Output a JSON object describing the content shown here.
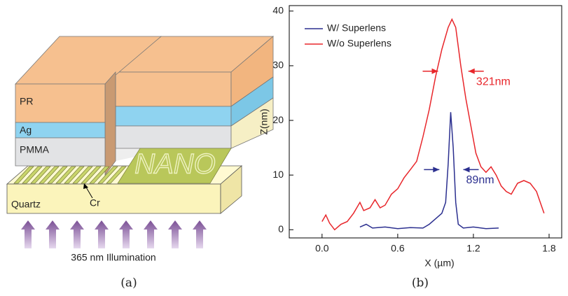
{
  "diagram": {
    "labels": {
      "pr": "PR",
      "ag": "Ag",
      "pmma": "PMMA",
      "quartz": "Quartz",
      "cr": "Cr",
      "pattern": "NANO",
      "illumination": "365 nm Illumination"
    },
    "caption": "(a)"
  },
  "chart_data": {
    "type": "line",
    "caption": "(b)",
    "xlabel": "X (µm)",
    "ylabel": "Z(nm)",
    "xlim": [
      -0.26,
      1.9
    ],
    "ylim": [
      -1.5,
      41
    ],
    "xticks": [
      {
        "value": 0,
        "label": "0.0"
      },
      0.6,
      1.2,
      1.8
    ],
    "yticks": [
      0,
      10,
      20,
      30,
      40
    ],
    "legend": "upper left",
    "series": [
      {
        "name": "W/ Superlens",
        "color": "#2b2f8f",
        "x": [
          0.3,
          0.35,
          0.4,
          0.5,
          0.6,
          0.7,
          0.8,
          0.85,
          0.9,
          0.95,
          0.98,
          1.0,
          1.02,
          1.04,
          1.06,
          1.08,
          1.12,
          1.2,
          1.3,
          1.4
        ],
        "values": [
          0.5,
          1,
          0.3,
          0.5,
          0.2,
          0.4,
          0.3,
          1,
          2,
          3,
          5,
          12,
          21.5,
          15,
          5,
          1,
          0.3,
          0.5,
          0.2,
          0.3
        ]
      },
      {
        "name": "W/o Superlens",
        "color": "#e8262b",
        "x": [
          0.0,
          0.03,
          0.06,
          0.1,
          0.15,
          0.2,
          0.25,
          0.3,
          0.33,
          0.38,
          0.42,
          0.46,
          0.5,
          0.55,
          0.6,
          0.65,
          0.7,
          0.75,
          0.8,
          0.85,
          0.9,
          0.95,
          1.0,
          1.03,
          1.06,
          1.1,
          1.14,
          1.18,
          1.22,
          1.26,
          1.3,
          1.34,
          1.38,
          1.42,
          1.46,
          1.5,
          1.55,
          1.6,
          1.65,
          1.7,
          1.73,
          1.76
        ],
        "values": [
          1.5,
          2.7,
          1.2,
          0,
          1,
          1.5,
          3,
          5,
          3.5,
          4,
          5.5,
          4,
          4.5,
          6.5,
          7.5,
          9.5,
          11,
          12.5,
          17,
          22,
          28,
          33,
          37,
          38.5,
          37,
          30,
          24,
          19,
          14,
          11.5,
          10.5,
          11.5,
          10,
          8,
          7,
          6.5,
          8.5,
          9,
          8.5,
          7,
          5,
          3
        ]
      }
    ],
    "annotations": [
      {
        "text": "321nm",
        "color": "#e8262b",
        "x": 1.2,
        "y": 27,
        "from": 0.92,
        "to": 1.16
      },
      {
        "text": "89nm",
        "color": "#2b2f8f",
        "x": 1.12,
        "y": 9,
        "from": 0.93,
        "to": 1.12
      }
    ]
  }
}
